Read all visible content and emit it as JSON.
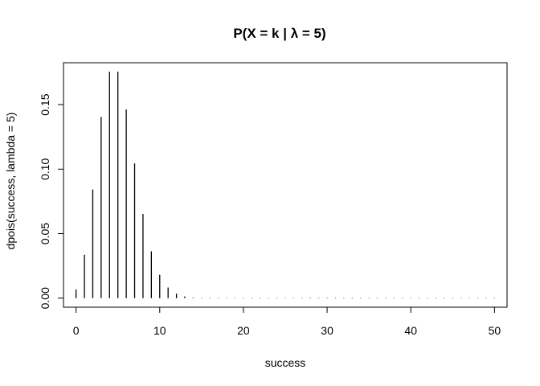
{
  "chart_data": {
    "type": "bar",
    "style": "histogram-lines",
    "title": "P(X = k | λ = 5)",
    "xlabel": "success",
    "ylabel": "dpois(success, lambda = 5)",
    "x": [
      0,
      1,
      2,
      3,
      4,
      5,
      6,
      7,
      8,
      9,
      10,
      11,
      12,
      13,
      14,
      15,
      16,
      17,
      18,
      19,
      20,
      21,
      22,
      23,
      24,
      25,
      26,
      27,
      28,
      29,
      30,
      31,
      32,
      33,
      34,
      35,
      36,
      37,
      38,
      39,
      40,
      41,
      42,
      43,
      44,
      45,
      46,
      47,
      48,
      49,
      50
    ],
    "values": [
      0.006738,
      0.03369,
      0.084224,
      0.140374,
      0.175467,
      0.175467,
      0.146223,
      0.104445,
      0.065278,
      0.036266,
      0.018133,
      0.008242,
      0.003434,
      0.001321,
      0.000472,
      0.000157,
      4.9e-05,
      1.4e-05,
      4e-06,
      1e-06,
      3e-07,
      0,
      0,
      0,
      0,
      0,
      0,
      0,
      0,
      0,
      0,
      0,
      0,
      0,
      0,
      0,
      0,
      0,
      0,
      0,
      0,
      0,
      0,
      0,
      0,
      0,
      0,
      0,
      0,
      0,
      0
    ],
    "xlim": [
      -1.5,
      51.5
    ],
    "ylim": [
      -0.00702,
      0.18249
    ],
    "xticks": [
      0,
      10,
      20,
      30,
      40,
      50
    ],
    "xtick_labels": [
      "0",
      "10",
      "20",
      "30",
      "40",
      "50"
    ],
    "yticks": [
      0.0,
      0.05,
      0.1,
      0.15
    ],
    "ytick_labels": [
      "0.00",
      "0.05",
      "0.10",
      "0.15"
    ],
    "grid": false,
    "legend": "none",
    "colors": {
      "line": "#000000",
      "frame": "#000000"
    }
  }
}
